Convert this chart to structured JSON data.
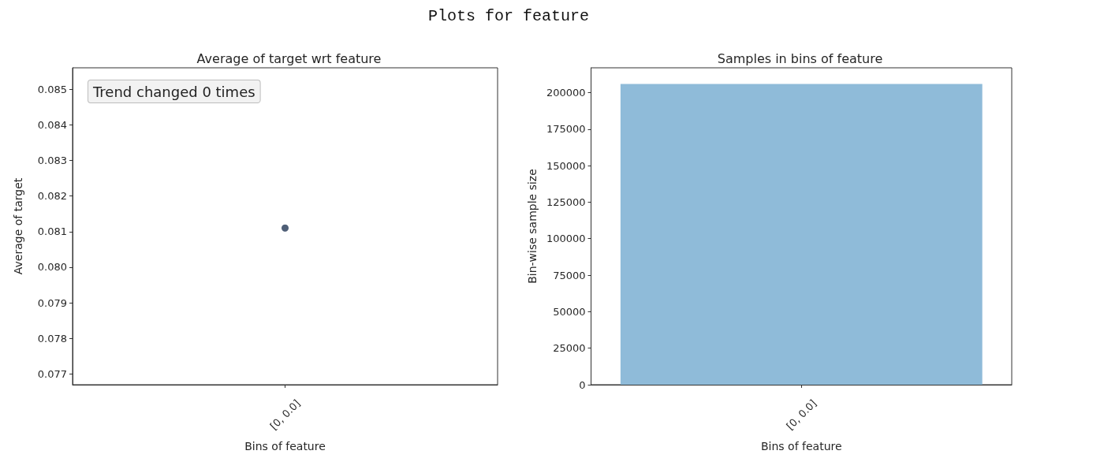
{
  "chart_data": [
    {
      "type": "other",
      "title": "Plots for feature"
    },
    {
      "type": "line",
      "title": "Average of target wrt feature",
      "xlabel": "Bins of feature",
      "ylabel": "Average of target",
      "categories": [
        "[0, 0.0]"
      ],
      "values": [
        0.0811
      ],
      "color": "#4f5f77",
      "marker": "circle",
      "ylim": [
        0.0767,
        0.0856
      ],
      "yticks": [
        0.077,
        0.078,
        0.079,
        {
          "value": 0.08,
          "label": "0.080"
        },
        0.081,
        0.082,
        0.083,
        0.084,
        0.085
      ],
      "annotations": [
        "Trend changed 0 times"
      ]
    },
    {
      "type": "bar",
      "title": "Samples in bins of feature",
      "xlabel": "Bins of feature",
      "ylabel": "Bin-wise sample size",
      "categories": [
        "[0, 0.0]"
      ],
      "values": [
        206000
      ],
      "color": "#8fbbd9",
      "ylim": [
        0,
        217000
      ],
      "yticks": [
        0,
        25000,
        50000,
        75000,
        100000,
        125000,
        150000,
        175000,
        200000
      ]
    }
  ]
}
